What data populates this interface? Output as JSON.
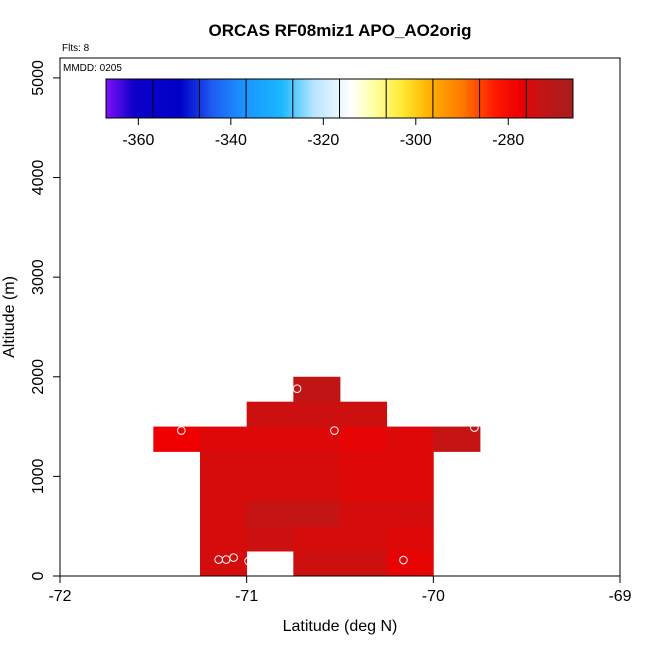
{
  "chart_data": {
    "type": "heatmap",
    "title": "ORCAS RF08miz1 APO_AO2orig",
    "annotation_flights": "Flts: 8",
    "annotation_date": "MMDD: 0205",
    "xlabel": "Latitude (deg N)",
    "ylabel": "Altitude (m)",
    "xlim": [
      -72,
      -69
    ],
    "ylim": [
      0,
      5200
    ],
    "xticks": [
      -72,
      -71,
      -70,
      -69
    ],
    "yticks": [
      0,
      1000,
      2000,
      3000,
      4000,
      5000
    ],
    "x_bin_width": 0.25,
    "y_bin_height": 250,
    "cells": [
      {
        "lat": -71.125,
        "alt": 125,
        "value": -275
      },
      {
        "lat": -70.625,
        "alt": 125,
        "value": -274
      },
      {
        "lat": -70.375,
        "alt": 125,
        "value": -274
      },
      {
        "lat": -70.125,
        "alt": 125,
        "value": -277
      },
      {
        "lat": -71.125,
        "alt": 375,
        "value": -275
      },
      {
        "lat": -70.875,
        "alt": 375,
        "value": -274
      },
      {
        "lat": -70.625,
        "alt": 375,
        "value": -275
      },
      {
        "lat": -70.375,
        "alt": 375,
        "value": -275
      },
      {
        "lat": -70.125,
        "alt": 375,
        "value": -276
      },
      {
        "lat": -71.125,
        "alt": 625,
        "value": -275
      },
      {
        "lat": -70.875,
        "alt": 625,
        "value": -273
      },
      {
        "lat": -70.625,
        "alt": 625,
        "value": -273
      },
      {
        "lat": -70.375,
        "alt": 625,
        "value": -275
      },
      {
        "lat": -70.125,
        "alt": 625,
        "value": -275
      },
      {
        "lat": -71.125,
        "alt": 875,
        "value": -275
      },
      {
        "lat": -70.875,
        "alt": 875,
        "value": -275
      },
      {
        "lat": -70.625,
        "alt": 875,
        "value": -275
      },
      {
        "lat": -70.375,
        "alt": 875,
        "value": -276
      },
      {
        "lat": -70.125,
        "alt": 875,
        "value": -276
      },
      {
        "lat": -71.125,
        "alt": 1125,
        "value": -275
      },
      {
        "lat": -70.875,
        "alt": 1125,
        "value": -275
      },
      {
        "lat": -70.625,
        "alt": 1125,
        "value": -275
      },
      {
        "lat": -70.375,
        "alt": 1125,
        "value": -276
      },
      {
        "lat": -70.125,
        "alt": 1125,
        "value": -276
      },
      {
        "lat": -71.375,
        "alt": 1375,
        "value": -278
      },
      {
        "lat": -71.125,
        "alt": 1375,
        "value": -276
      },
      {
        "lat": -70.875,
        "alt": 1375,
        "value": -276
      },
      {
        "lat": -70.625,
        "alt": 1375,
        "value": -276
      },
      {
        "lat": -70.375,
        "alt": 1375,
        "value": -277
      },
      {
        "lat": -70.125,
        "alt": 1375,
        "value": -276
      },
      {
        "lat": -69.875,
        "alt": 1375,
        "value": -273
      },
      {
        "lat": -70.875,
        "alt": 1625,
        "value": -274
      },
      {
        "lat": -70.625,
        "alt": 1625,
        "value": -274
      },
      {
        "lat": -70.375,
        "alt": 1625,
        "value": -274
      },
      {
        "lat": -70.625,
        "alt": 1875,
        "value": -272
      }
    ],
    "points": [
      {
        "lat": -71.15,
        "alt": 165
      },
      {
        "lat": -71.11,
        "alt": 165
      },
      {
        "lat": -71.07,
        "alt": 185
      },
      {
        "lat": -70.99,
        "alt": 150
      },
      {
        "lat": -70.16,
        "alt": 160
      },
      {
        "lat": -71.35,
        "alt": 1460
      },
      {
        "lat": -70.53,
        "alt": 1460
      },
      {
        "lat": -69.78,
        "alt": 1490
      },
      {
        "lat": -70.73,
        "alt": 1880
      }
    ],
    "colorbar": {
      "range": [
        -367,
        -266
      ],
      "ticks": [
        -360,
        -340,
        -320,
        -300,
        -280
      ],
      "bins": 10,
      "stops": [
        {
          "v": -367,
          "c": "#7e11f7"
        },
        {
          "v": -361,
          "c": "#0e00c8"
        },
        {
          "v": -351,
          "c": "#0000c8"
        },
        {
          "v": -344,
          "c": "#1f5cf1"
        },
        {
          "v": -338,
          "c": "#1a8fff"
        },
        {
          "v": -329,
          "c": "#1ab8ff"
        },
        {
          "v": -322,
          "c": "#b8e6ff"
        },
        {
          "v": -314,
          "c": "#ffffff"
        },
        {
          "v": -309,
          "c": "#ffffa3"
        },
        {
          "v": -303,
          "c": "#ffea33"
        },
        {
          "v": -297,
          "c": "#ffb000"
        },
        {
          "v": -290,
          "c": "#ff7a00"
        },
        {
          "v": -283,
          "c": "#ff1a00"
        },
        {
          "v": -278,
          "c": "#ee0000"
        },
        {
          "v": -273,
          "c": "#c41414"
        },
        {
          "v": -266,
          "c": "#a71d1d"
        }
      ]
    }
  }
}
